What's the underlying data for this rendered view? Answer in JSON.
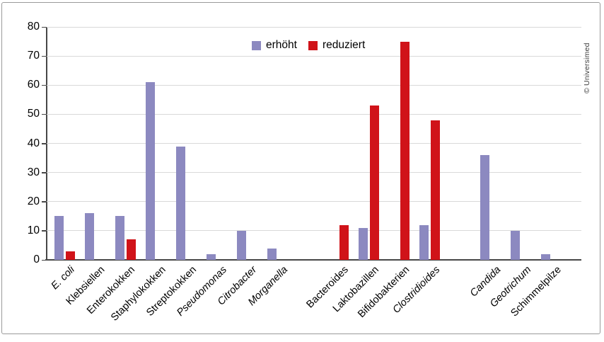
{
  "credit": "© Universimed",
  "chart_data": {
    "type": "bar",
    "title": "",
    "xlabel": "",
    "ylabel": "",
    "ylim": [
      0,
      80
    ],
    "yticks": [
      0,
      10,
      20,
      30,
      40,
      50,
      60,
      70,
      80
    ],
    "grid": true,
    "legend_position": "top-center",
    "categories": [
      "E. coli",
      "Klebsiellen",
      "Enterokokken",
      "Staphylokokken",
      "Streptokokken",
      "Pseudomonas",
      "Citrobacter",
      "Morganella",
      "Bacteroides",
      "Laktobazillen",
      "Bifidobakterien",
      "Clostridioides",
      "Candida",
      "Geotrichum",
      "Schimmelpilze"
    ],
    "categories_italic": [
      true,
      false,
      false,
      false,
      false,
      true,
      true,
      true,
      false,
      false,
      false,
      true,
      true,
      true,
      false
    ],
    "group_gap_after_indices": [
      7,
      11
    ],
    "series": [
      {
        "name": "erhöht",
        "color": "#8c89c0",
        "values": [
          15,
          16,
          15,
          61,
          39,
          2,
          10,
          4,
          0,
          11,
          0,
          12,
          36,
          10,
          2
        ]
      },
      {
        "name": "reduziert",
        "color": "#d01319",
        "values": [
          3,
          0,
          7,
          0,
          0,
          0,
          0,
          0,
          12,
          53,
          75,
          48,
          0,
          0,
          0
        ]
      }
    ]
  }
}
